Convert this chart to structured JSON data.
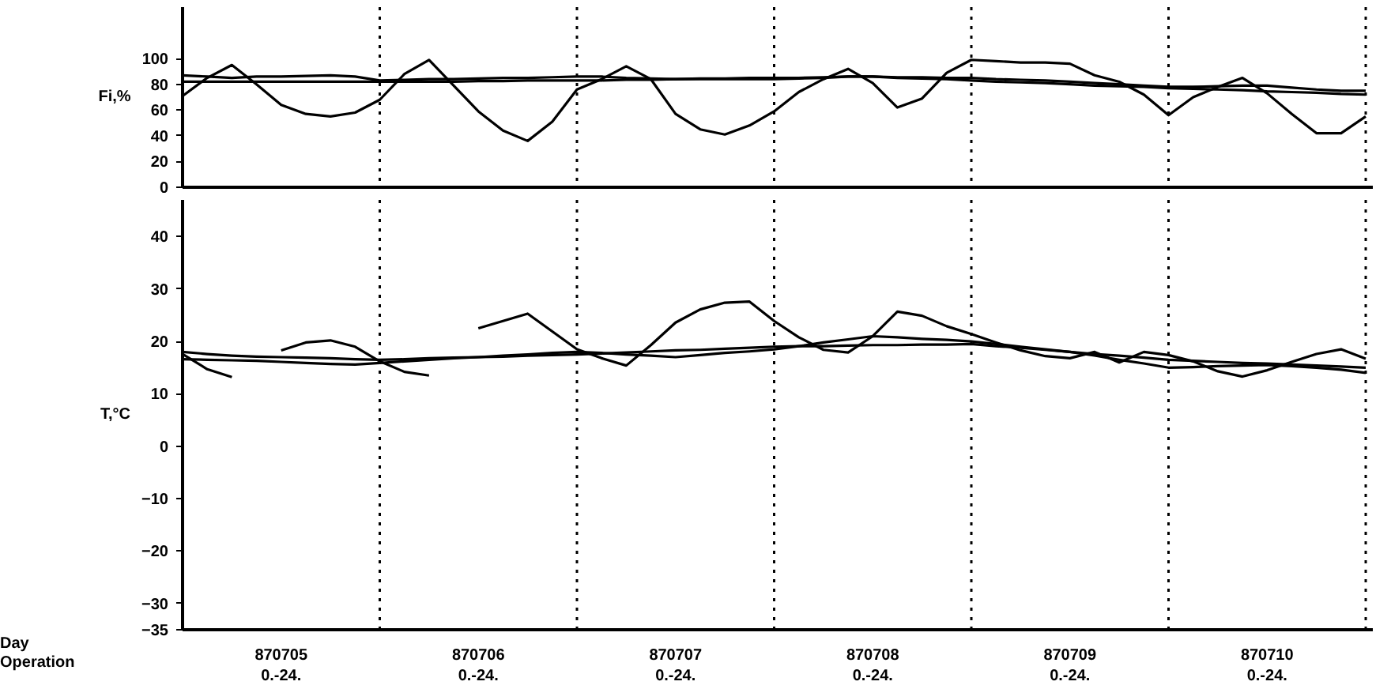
{
  "chart_data": [
    {
      "type": "line",
      "ylabel": "Fi,%",
      "ylim": [
        0,
        140
      ],
      "yticks": [
        0,
        20,
        40,
        60,
        80,
        100
      ],
      "categories": [
        null,
        null,
        null,
        null,
        null,
        null,
        null,
        null,
        null,
        null,
        null,
        null,
        null,
        null,
        null,
        null,
        null,
        null,
        null,
        null,
        null,
        null,
        null,
        null,
        null,
        null,
        null,
        null,
        null,
        null,
        null,
        null,
        null,
        null,
        null,
        null,
        null,
        null,
        null,
        null,
        null,
        null,
        null,
        null,
        null,
        null,
        null,
        null,
        null
      ],
      "tick_labels": "y",
      "grid": "x",
      "marker": "none",
      "line_style": "solid",
      "series": [
        {
          "color": "#000000",
          "values": [
            71,
            85,
            95,
            80,
            64,
            57,
            55,
            58,
            68,
            88,
            99,
            79,
            59,
            44,
            36,
            51,
            76,
            84,
            94,
            84,
            57,
            45,
            41,
            48,
            59,
            74,
            84,
            92,
            81,
            62,
            69,
            89,
            99,
            98,
            97,
            97,
            96,
            87,
            82,
            72,
            56,
            70,
            78,
            85,
            73,
            57,
            42,
            42,
            55
          ]
        },
        {
          "color": "#000000",
          "values": [
            82,
            82,
            82,
            82,
            82,
            82,
            82,
            82,
            82,
            82,
            82,
            82,
            82.5,
            82.5,
            83,
            83,
            83,
            83,
            83.5,
            83.5,
            84,
            84.5,
            84.5,
            85,
            85,
            85,
            85.5,
            86,
            86,
            85,
            84.5,
            84,
            83,
            82,
            81.5,
            81,
            80,
            79,
            78.5,
            78,
            77,
            76.5,
            76,
            75.5,
            74.5,
            74,
            73.5,
            72.5,
            72
          ]
        },
        {
          "color": "#000000",
          "values": [
            87,
            86,
            85,
            86,
            86,
            86.5,
            87,
            86,
            83,
            83.5,
            84,
            84,
            84.5,
            85,
            85,
            85.5,
            86,
            86,
            85,
            84.5,
            84,
            84,
            84,
            84,
            84,
            84.5,
            85,
            86,
            86,
            85.5,
            85.5,
            85,
            85,
            84,
            83.5,
            83,
            82,
            81,
            80,
            79,
            78,
            78,
            78.5,
            79,
            79,
            77.5,
            76,
            75,
            75
          ]
        }
      ]
    },
    {
      "type": "line",
      "ylabel": "T,°C",
      "ylim": [
        -35,
        47
      ],
      "yticks": [
        -35,
        -30,
        -20,
        -10,
        0,
        10,
        20,
        30,
        40
      ],
      "categories": [
        null,
        null,
        null,
        null,
        "870705\n0.-24.",
        null,
        null,
        null,
        null,
        null,
        null,
        null,
        "870706\n0.-24.",
        null,
        null,
        null,
        null,
        null,
        null,
        null,
        "870707\n0.-24.",
        null,
        null,
        null,
        null,
        null,
        null,
        null,
        "870708\n0.-24.",
        null,
        null,
        null,
        null,
        null,
        null,
        null,
        "870709\n0.-24.",
        null,
        null,
        null,
        null,
        null,
        null,
        null,
        "870710\n0.-24.",
        null,
        null,
        null,
        null
      ],
      "grid": "x",
      "marker": "none",
      "line_style": "solid",
      "annotations": [
        "Day",
        "Operation"
      ],
      "series": [
        {
          "color": "#000000",
          "values": [
            17.6,
            14.7,
            13.2,
            null,
            18.3,
            19.8,
            20.2,
            19,
            16.2,
            14.2,
            13.5,
            null,
            22.5,
            23.9,
            25.3,
            21.9,
            18.5,
            16.8,
            15.4,
            19.3,
            23.6,
            26.1,
            27.4,
            27.6,
            23.9,
            20.8,
            18.4,
            17.9,
            21,
            25.7,
            24.9,
            22.9,
            21.4,
            19.8,
            18.3,
            17.2,
            16.8,
            18,
            16,
            18,
            17.4,
            16.2,
            14.3,
            13.3,
            14.5,
            16.1,
            17.6,
            18.5,
            16.7
          ]
        },
        {
          "color": "#000000",
          "values": [
            18,
            17.6,
            17.3,
            17.1,
            17,
            16.9,
            16.8,
            16.6,
            16.5,
            16.6,
            16.8,
            16.9,
            17,
            17.1,
            17.3,
            17.4,
            17.5,
            17.7,
            17.9,
            18.1,
            18.3,
            18.4,
            18.6,
            18.8,
            19,
            19.1,
            19.1,
            19.2,
            19.3,
            19.3,
            19.4,
            19.4,
            19.5,
            19.1,
            18.8,
            18.4,
            18,
            17.6,
            17.3,
            16.9,
            16.5,
            16.3,
            16.1,
            15.9,
            15.8,
            15.6,
            15.4,
            15.2,
            15
          ]
        },
        {
          "color": "#000000",
          "values": [
            16.6,
            16.5,
            16.4,
            16.3,
            16.1,
            15.9,
            15.7,
            15.6,
            15.9,
            16.2,
            16.5,
            16.8,
            17,
            17.3,
            17.5,
            17.8,
            18,
            17.8,
            17.5,
            17.3,
            17,
            17.4,
            17.8,
            18.1,
            18.5,
            19.1,
            19.8,
            20.4,
            21,
            20.8,
            20.5,
            20.3,
            20,
            19.5,
            19,
            18.5,
            18,
            17.3,
            16.5,
            15.8,
            15,
            15.1,
            15.3,
            15.4,
            15.5,
            15.3,
            15,
            14.6,
            14
          ]
        }
      ]
    }
  ]
}
